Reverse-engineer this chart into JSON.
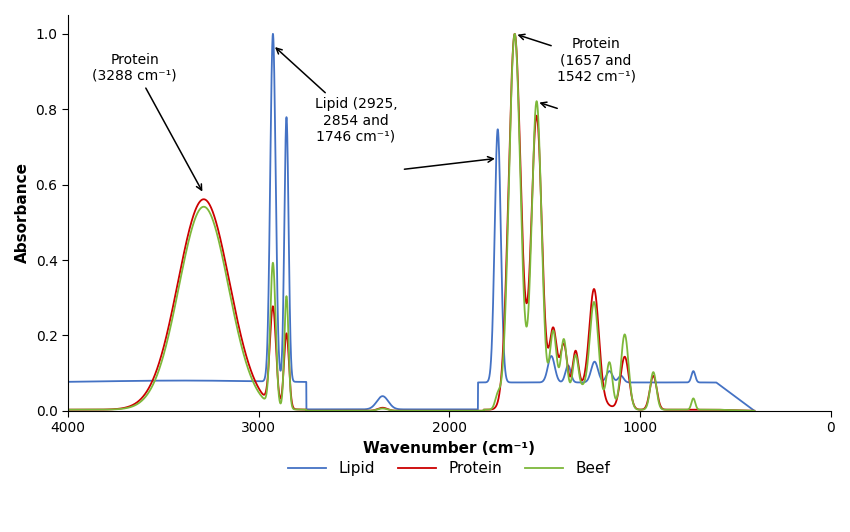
{
  "xlabel": "Wavenumber (cm⁻¹)",
  "ylabel": "Absorbance",
  "xlim": [
    4000,
    0
  ],
  "ylim": [
    0,
    1.05
  ],
  "xticks": [
    4000,
    3000,
    2000,
    1000,
    0
  ],
  "yticks": [
    0.0,
    0.2,
    0.4,
    0.6,
    0.8,
    1.0
  ],
  "lipid_color": "#4472C4",
  "protein_color": "#CC0000",
  "beef_color": "#7DB83A",
  "legend_labels": [
    "Lipid",
    "Protein",
    "Beef"
  ]
}
